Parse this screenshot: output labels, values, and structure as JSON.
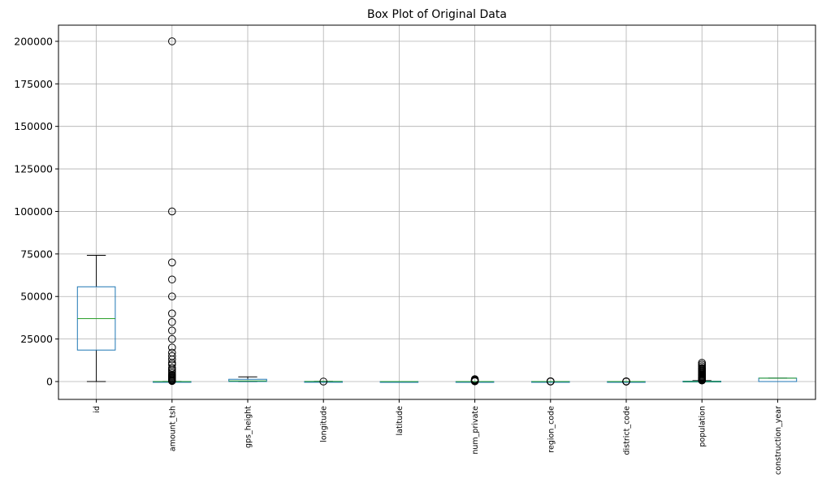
{
  "chart_data": {
    "type": "box",
    "title": "Box Plot of Original Data",
    "xlabel": "",
    "ylabel": "",
    "ylim": [
      -10500,
      209500
    ],
    "yticks": [
      0,
      25000,
      50000,
      75000,
      100000,
      125000,
      150000,
      175000,
      200000
    ],
    "ytick_labels": [
      "0",
      "25000",
      "50000",
      "75000",
      "100000",
      "125000",
      "150000",
      "175000",
      "200000"
    ],
    "grid": true,
    "colors": {
      "box": "#1f77b4",
      "median": "#2ca02c",
      "whisker": "#000000",
      "grid": "#b0b0b0"
    },
    "categories": [
      "id",
      "amount_tsh",
      "gps_height",
      "longitude",
      "latitude",
      "num_private",
      "region_code",
      "district_code",
      "population",
      "construction_year"
    ],
    "boxes": [
      {
        "name": "id",
        "whislo": 0,
        "q1": 18500,
        "med": 37000,
        "q3": 55700,
        "whishi": 74200,
        "fliers": []
      },
      {
        "name": "amount_tsh",
        "whislo": 0,
        "q1": 0,
        "med": 0,
        "q3": 20,
        "whishi": 50,
        "fliers": [
          200000,
          100000,
          70000,
          60000,
          50000,
          40000,
          35000,
          30000,
          25000,
          20000,
          17000,
          15000,
          13000,
          11000,
          10000,
          8000,
          7000,
          6000,
          5000,
          4000,
          3500,
          3000,
          2500,
          2000,
          1500,
          1000,
          700,
          500,
          300
        ]
      },
      {
        "name": "gps_height",
        "whislo": -90,
        "q1": 0,
        "med": 370,
        "q3": 1320,
        "whishi": 2770,
        "fliers": []
      },
      {
        "name": "longitude",
        "whislo": 29,
        "q1": 33,
        "med": 35,
        "q3": 37,
        "whishi": 40,
        "fliers": [
          0
        ]
      },
      {
        "name": "latitude",
        "whislo": -11,
        "q1": -8,
        "med": -5,
        "q3": -3,
        "whishi": 0,
        "fliers": []
      },
      {
        "name": "num_private",
        "whislo": 0,
        "q1": 0,
        "med": 0,
        "q3": 0,
        "whishi": 0,
        "fliers": [
          100,
          200,
          300,
          400,
          500,
          700,
          1000,
          1400
        ]
      },
      {
        "name": "region_code",
        "whislo": 1,
        "q1": 5,
        "med": 12,
        "q3": 17,
        "whishi": 24,
        "fliers": [
          60,
          80,
          90,
          99
        ]
      },
      {
        "name": "district_code",
        "whislo": 0,
        "q1": 2,
        "med": 3,
        "q3": 5,
        "whishi": 8,
        "fliers": [
          30,
          40,
          53,
          60,
          80
        ]
      },
      {
        "name": "population",
        "whislo": 0,
        "q1": 0,
        "med": 25,
        "q3": 215,
        "whishi": 530,
        "fliers": [
          11000,
          10000,
          9000,
          8000,
          7500,
          7000,
          6500,
          6000,
          5500,
          5000,
          4500,
          4000,
          3500,
          3000,
          2700,
          2400,
          2100,
          1800,
          1500,
          1200,
          1000,
          800,
          600
        ]
      },
      {
        "name": "construction_year",
        "whislo": 0,
        "q1": 0,
        "med": 1986,
        "q3": 2004,
        "whishi": 2013,
        "fliers": []
      }
    ]
  }
}
